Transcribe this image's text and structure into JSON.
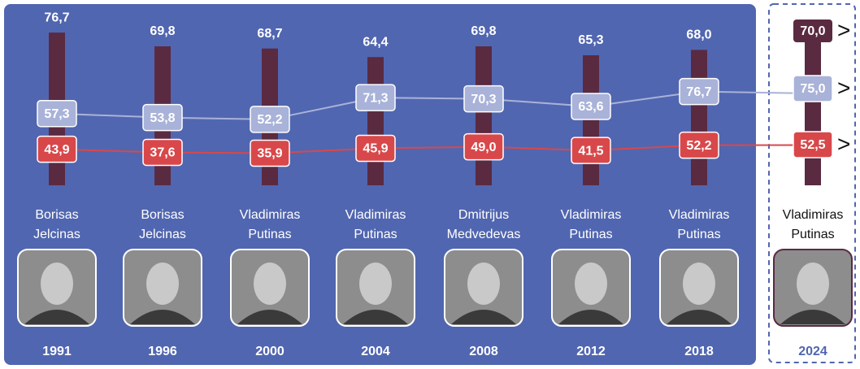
{
  "chart_data": {
    "type": "bar",
    "categories": [
      "1991",
      "1996",
      "2000",
      "2004",
      "2008",
      "2012",
      "2018",
      "2024"
    ],
    "candidates": [
      "Borisas Jelcinas",
      "Borisas Jelcinas",
      "Vladimiras Putinas",
      "Vladimiras Putinas",
      "Dmitrijus Medvedevas",
      "Vladimiras Putinas",
      "Vladimiras Putinas",
      "Vladimiras Putinas"
    ],
    "forecast_marker": ">",
    "series": [
      {
        "color": "#5a2a41",
        "values": [
          76.7,
          69.8,
          68.7,
          64.4,
          69.8,
          65.3,
          68.0,
          70.0
        ],
        "value_labels": [
          "76,7",
          "69,8",
          "68,7",
          "64,4",
          "69,8",
          "65,3",
          "68,0",
          "70,0"
        ]
      },
      {
        "color": "#a9b2d8",
        "values": [
          57.3,
          53.8,
          52.2,
          71.3,
          70.3,
          63.6,
          76.7,
          75.0
        ],
        "value_labels": [
          "57,3",
          "53,8",
          "52,2",
          "71,3",
          "70,3",
          "63,6",
          "76,7",
          "75,0"
        ]
      },
      {
        "color": "#d8484a",
        "values": [
          43.9,
          37.6,
          35.9,
          45.9,
          49.0,
          41.5,
          52.2,
          52.5
        ],
        "value_labels": [
          "43,9",
          "37,6",
          "35,9",
          "45,9",
          "49,0",
          "41,5",
          "52,2",
          "52,5"
        ]
      }
    ]
  }
}
